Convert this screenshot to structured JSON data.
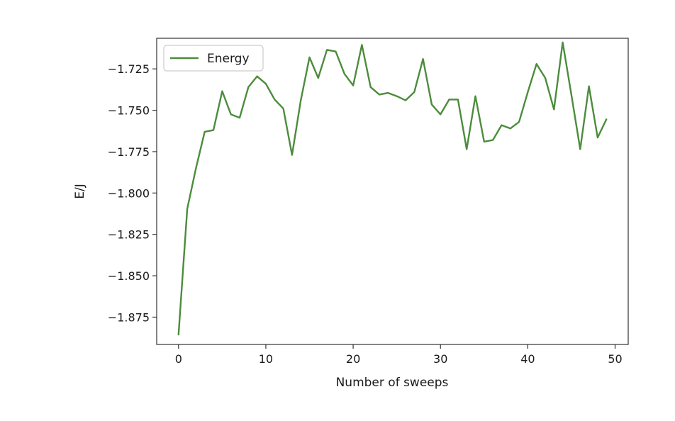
{
  "chart_data": {
    "type": "line",
    "xlabel": "Number of sweeps",
    "ylabel": "E/J",
    "xlim": [
      -2.5,
      51.5
    ],
    "ylim": [
      -1.8915,
      -1.7065
    ],
    "xticks": [
      0,
      10,
      20,
      30,
      40,
      50
    ],
    "yticks": [
      -1.875,
      -1.85,
      -1.825,
      -1.8,
      -1.775,
      -1.75,
      -1.725
    ],
    "ytick_labels": [
      "−1.875",
      "−1.850",
      "−1.825",
      "−1.800",
      "−1.775",
      "−1.750",
      "−1.725"
    ],
    "xtick_labels": [
      "0",
      "10",
      "20",
      "30",
      "40",
      "50"
    ],
    "legend": {
      "position": "top-left"
    },
    "grid": false,
    "series": [
      {
        "name": "Energy",
        "color": "#4c8c3c",
        "x": [
          0,
          1,
          2,
          3,
          4,
          5,
          6,
          7,
          8,
          9,
          10,
          11,
          12,
          13,
          14,
          15,
          16,
          17,
          18,
          19,
          20,
          21,
          22,
          23,
          24,
          25,
          26,
          27,
          28,
          29,
          30,
          31,
          32,
          33,
          34,
          35,
          36,
          37,
          38,
          39,
          40,
          41,
          42,
          43,
          44,
          45,
          46,
          47,
          48,
          49
        ],
        "values": [
          -1.8855,
          -1.8095,
          -1.785,
          -1.763,
          -1.762,
          -1.7385,
          -1.7525,
          -1.7545,
          -1.736,
          -1.7295,
          -1.734,
          -1.7435,
          -1.749,
          -1.777,
          -1.744,
          -1.718,
          -1.7305,
          -1.7135,
          -1.7145,
          -1.728,
          -1.735,
          -1.7105,
          -1.736,
          -1.7405,
          -1.7395,
          -1.7415,
          -1.744,
          -1.739,
          -1.719,
          -1.7465,
          -1.7525,
          -1.7435,
          -1.7435,
          -1.7735,
          -1.7415,
          -1.769,
          -1.768,
          -1.759,
          -1.761,
          -1.757,
          -1.739,
          -1.722,
          -1.7305,
          -1.7495,
          -1.709,
          -1.741,
          -1.7735,
          -1.7355,
          -1.7665,
          -1.7555
        ]
      }
    ]
  }
}
